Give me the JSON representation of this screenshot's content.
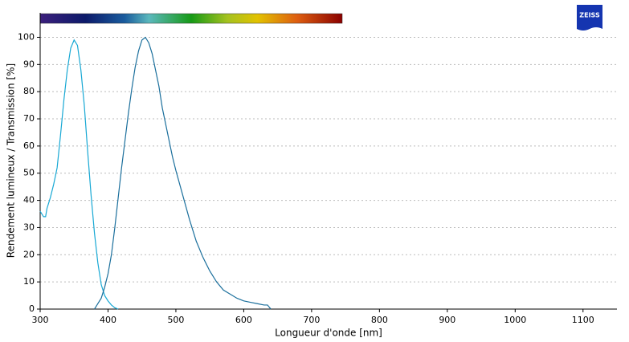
{
  "chart_data": {
    "type": "line",
    "xlabel": "Longueur d'onde [nm]",
    "ylabel": "Rendement lumineux / Transmission [%]",
    "logo": "ZEISS",
    "xlim": [
      300,
      1150
    ],
    "ylim": [
      0,
      109
    ],
    "xticks": [
      300,
      400,
      500,
      600,
      700,
      800,
      900,
      1000,
      1100
    ],
    "yticks": [
      0,
      10,
      20,
      30,
      40,
      50,
      60,
      70,
      80,
      90,
      100
    ],
    "grid": true,
    "series": [
      {
        "color": "#17a8d4",
        "x": [
          300,
          305,
          308,
          310,
          315,
          320,
          325,
          330,
          335,
          340,
          345,
          350,
          355,
          360,
          365,
          370,
          375,
          380,
          385,
          390,
          395,
          400,
          405,
          410,
          415
        ],
        "values": [
          36,
          34,
          34,
          37,
          41,
          46,
          52,
          64,
          77,
          88,
          96,
          99,
          97,
          88,
          75,
          58,
          42,
          28,
          17,
          9,
          5,
          3,
          1.5,
          0.5,
          0
        ]
      },
      {
        "color": "#1b6f9c",
        "x": [
          380,
          385,
          390,
          395,
          400,
          405,
          410,
          415,
          420,
          425,
          430,
          435,
          440,
          445,
          450,
          455,
          460,
          465,
          470,
          475,
          480,
          485,
          490,
          495,
          500,
          510,
          520,
          530,
          540,
          550,
          560,
          570,
          580,
          590,
          600,
          610,
          620,
          630,
          635,
          640
        ],
        "values": [
          0,
          2,
          4,
          8,
          13,
          20,
          30,
          41,
          52,
          62,
          72,
          81,
          89,
          95,
          99,
          100,
          98,
          94,
          88,
          82,
          74,
          68,
          62,
          56,
          51,
          42,
          33,
          25,
          19,
          14,
          10,
          7,
          5.5,
          4,
          3,
          2.5,
          2,
          1.5,
          1.5,
          0
        ]
      }
    ]
  }
}
